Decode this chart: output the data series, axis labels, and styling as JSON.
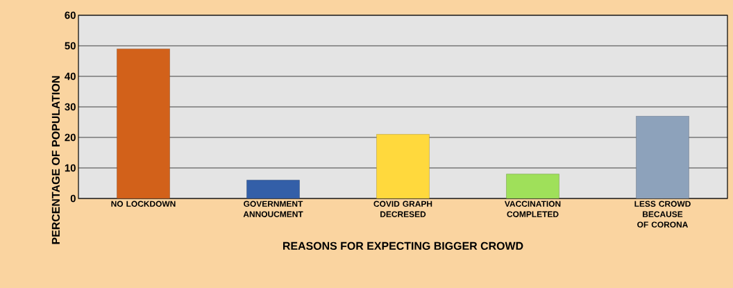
{
  "chart_data": {
    "type": "bar",
    "xlabel": "REASONS FOR EXPECTING BIGGER CROWD",
    "ylabel": "PERCENTAGE OF POPULATION",
    "categories": [
      "NO LOCKDOWN",
      "GOVERNMENT ANNOUCMENT",
      "COVID GRAPH DECRESED",
      "VACCINATION COMPLETED",
      "LESS CROWD BECAUSE OF CORONA"
    ],
    "values": [
      49,
      6,
      21,
      8,
      27
    ],
    "colors": [
      "#d2611a",
      "#335fa8",
      "#ffd93d",
      "#9fe05a",
      "#8da2bb"
    ],
    "ylim": [
      0,
      60
    ],
    "yticks": [
      0,
      10,
      20,
      30,
      40,
      50,
      60
    ],
    "grid": "y"
  }
}
